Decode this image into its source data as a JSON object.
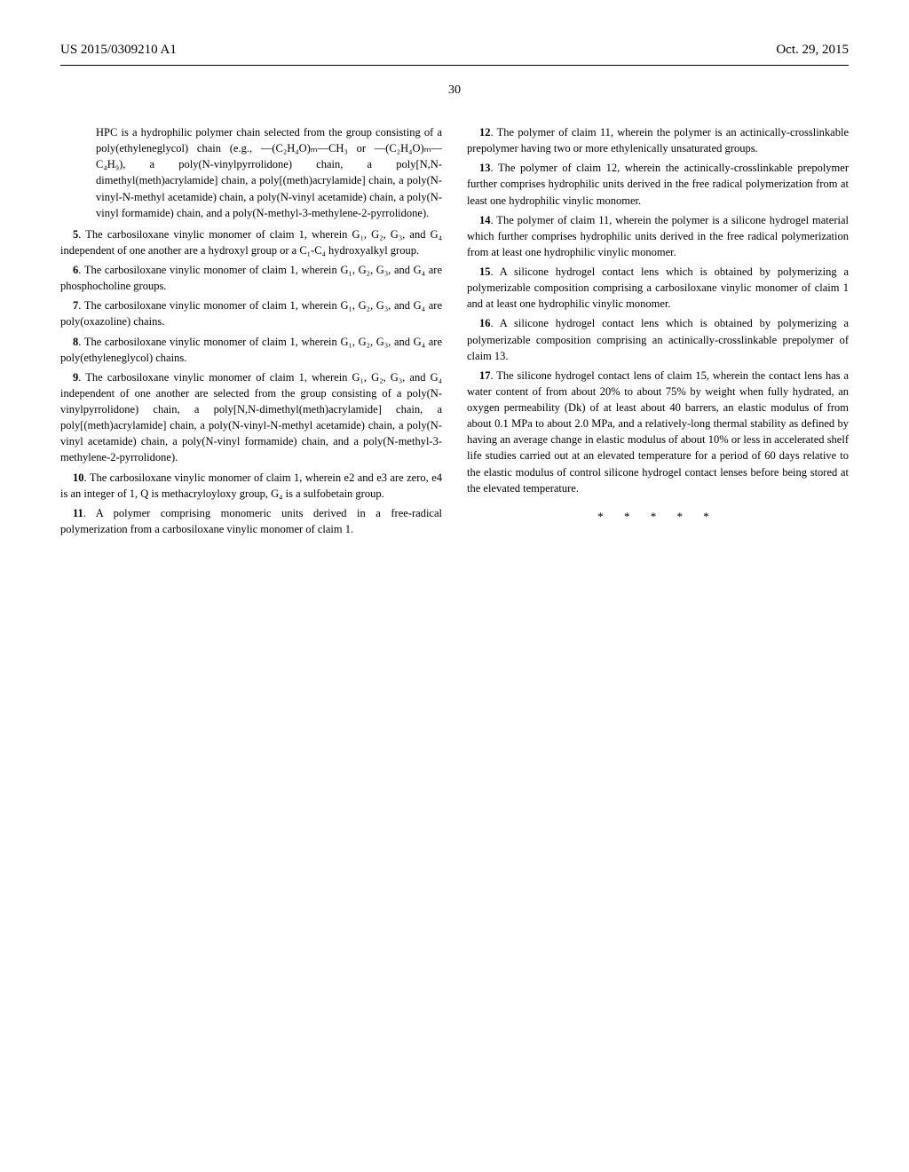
{
  "header": {
    "docNumber": "US 2015/0309210 A1",
    "date": "Oct. 29, 2015"
  },
  "pageNumber": "30",
  "leftColumn": {
    "hpcBlock": "HPC is a hydrophilic polymer chain selected from the group consisting of a poly(ethyleneglycol) chain (e.g., —(C₂H₄O)ₘ—CH₃ or —(C₂H₄O)ₘ—C₄H₉), a poly(N-vinylpyrrolidone) chain, a poly[N,N-dimethyl(meth)acrylamide] chain, a poly[(meth)acrylamide] chain, a poly(N-vinyl-N-methyl acetamide) chain, a poly(N-vinyl acetamide) chain, a poly(N-vinyl formamide) chain, and a poly(N-methyl-3-methylene-2-pyrrolidone).",
    "claim5": ". The carbosiloxane vinylic monomer of claim 1, wherein G₁, G₂, G₃, and G₄ independent of one another are a hydroxyl group or a C₁-C₄ hydroxyalkyl group.",
    "claim6": ". The carbosiloxane vinylic monomer of claim 1, wherein G₁, G₂, G₃, and G₄ are phosphocholine groups.",
    "claim7": ". The carbosiloxane vinylic monomer of claim 1, wherein G₁, G₂, G₃, and G₄ are poly(oxazoline) chains.",
    "claim8": ". The carbosiloxane vinylic monomer of claim 1, wherein G₁, G₂, G₃, and G₄ are poly(ethyleneglycol) chains.",
    "claim9": ". The carbosiloxane vinylic monomer of claim 1, wherein G₁, G₂, G₃, and G₄ independent of one another are selected from the group consisting of a poly(N-vinylpyrrolidone) chain, a poly[N,N-dimethyl(meth)acrylamide] chain, a poly[(meth)acrylamide] chain, a poly(N-vinyl-N-methyl acetamide) chain, a poly(N-vinyl acetamide) chain, a poly(N-vinyl formamide) chain, and a poly(N-methyl-3-methylene-2-pyrrolidone).",
    "claim10": ". The carbosiloxane vinylic monomer of claim 1, wherein e2 and e3 are zero, e4 is an integer of 1, Q is methacryloyloxy group, G₄ is a sulfobetain group.",
    "claim11": ". A polymer comprising monomeric units derived in a free-radical polymerization from a carbosiloxane vinylic monomer of claim 1."
  },
  "rightColumn": {
    "claim12": ". The polymer of claim 11, wherein the polymer is an actinically-crosslinkable prepolymer having two or more ethylenically unsaturated groups.",
    "claim13": ". The polymer of claim 12, wherein the actinically-crosslinkable prepolymer further comprises hydrophilic units derived in the free radical polymerization from at least one hydrophilic vinylic monomer.",
    "claim14": ". The polymer of claim 11, wherein the polymer is a silicone hydrogel material which further comprises hydrophilic units derived in the free radical polymerization from at least one hydrophilic vinylic monomer.",
    "claim15": ". A silicone hydrogel contact lens which is obtained by polymerizing a polymerizable composition comprising a carbosiloxane vinylic monomer of claim 1 and at least one hydrophilic vinylic monomer.",
    "claim16": ". A silicone hydrogel contact lens which is obtained by polymerizing a polymerizable composition comprising an actinically-crosslinkable prepolymer of claim 13.",
    "claim17": ". The silicone hydrogel contact lens of claim 15, wherein the contact lens has a water content of from about 20% to about 75% by weight when fully hydrated, an oxygen permeability (Dk) of at least about 40 barrers, an elastic modulus of from about 0.1 MPa to about 2.0 MPa, and a relatively-long thermal stability as defined by having an average change in elastic modulus of about 10% or less in accelerated shelf life studies carried out at an elevated temperature for a period of 60 days relative to the elastic modulus of control silicone hydrogel contact lenses before being stored at the elevated temperature."
  },
  "asterisks": "* * * * *"
}
